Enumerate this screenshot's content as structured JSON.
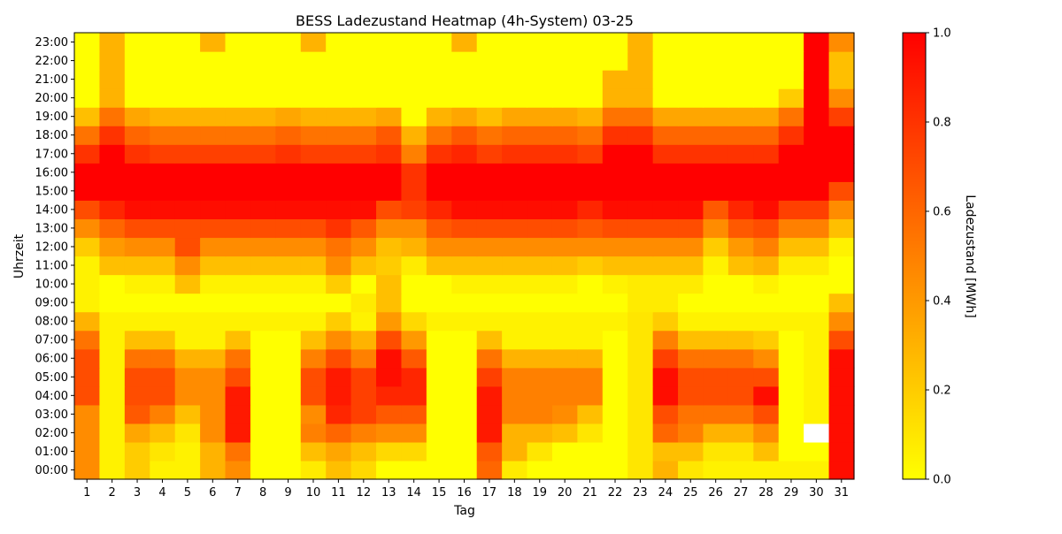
{
  "chart_data": {
    "type": "heatmap",
    "title": "BESS Ladezustand Heatmap (4h-System) 03-25",
    "xlabel": "Tag",
    "ylabel": "Uhrzeit",
    "colorbar": {
      "label": "Ladezustand [MWh]",
      "range": [
        0.0,
        1.0
      ],
      "ticks": [
        "0.0",
        "0.2",
        "0.4",
        "0.6",
        "0.8",
        "1.0"
      ],
      "colormap": "autumn_r",
      "low_color": "#ffff00",
      "high_color": "#ff0000"
    },
    "x": [
      "1",
      "2",
      "3",
      "4",
      "5",
      "6",
      "7",
      "8",
      "9",
      "10",
      "11",
      "12",
      "13",
      "14",
      "15",
      "16",
      "17",
      "18",
      "19",
      "20",
      "21",
      "22",
      "23",
      "24",
      "25",
      "26",
      "27",
      "28",
      "29",
      "30",
      "31"
    ],
    "y": [
      "00:00",
      "01:00",
      "02:00",
      "03:00",
      "04:00",
      "05:00",
      "06:00",
      "07:00",
      "08:00",
      "09:00",
      "10:00",
      "11:00",
      "12:00",
      "13:00",
      "14:00",
      "15:00",
      "16:00",
      "17:00",
      "18:00",
      "19:00",
      "20:00",
      "21:00",
      "22:00",
      "23:00"
    ],
    "values": [
      [
        0.45,
        0.05,
        0.2,
        0.05,
        0.05,
        0.3,
        0.45,
        0.0,
        0.0,
        0.08,
        0.25,
        0.15,
        0.0,
        0.0,
        0.0,
        0.0,
        0.6,
        0.08,
        0.0,
        0.0,
        0.0,
        0.0,
        0.1,
        0.3,
        0.1,
        0.05,
        0.05,
        0.05,
        0.05,
        0.05,
        0.95
      ],
      [
        0.45,
        0.05,
        0.2,
        0.1,
        0.05,
        0.3,
        0.55,
        0.0,
        0.0,
        0.25,
        0.35,
        0.25,
        0.15,
        0.15,
        0.0,
        0.0,
        0.65,
        0.3,
        0.1,
        0.0,
        0.0,
        0.0,
        0.1,
        0.25,
        0.25,
        0.1,
        0.1,
        0.25,
        0.0,
        0.0,
        0.95
      ],
      [
        0.45,
        0.05,
        0.35,
        0.25,
        0.1,
        0.45,
        0.9,
        0.0,
        0.0,
        0.5,
        0.6,
        0.5,
        0.45,
        0.45,
        0.0,
        0.0,
        0.9,
        0.3,
        0.3,
        0.25,
        0.1,
        0.0,
        0.1,
        0.6,
        0.5,
        0.3,
        0.3,
        0.45,
        0.0,
        null,
        0.95
      ],
      [
        0.45,
        0.05,
        0.65,
        0.5,
        0.25,
        0.45,
        0.9,
        0.0,
        0.0,
        0.45,
        0.85,
        0.75,
        0.65,
        0.65,
        0.0,
        0.0,
        0.9,
        0.5,
        0.5,
        0.45,
        0.25,
        0.0,
        0.1,
        0.7,
        0.55,
        0.55,
        0.55,
        0.7,
        0.0,
        0.05,
        0.95
      ],
      [
        0.7,
        0.05,
        0.7,
        0.7,
        0.45,
        0.45,
        0.9,
        0.0,
        0.0,
        0.7,
        0.9,
        0.75,
        0.85,
        0.85,
        0.0,
        0.0,
        0.9,
        0.5,
        0.5,
        0.5,
        0.5,
        0.0,
        0.1,
        0.95,
        0.7,
        0.7,
        0.7,
        0.95,
        0.0,
        0.05,
        0.95
      ],
      [
        0.7,
        0.05,
        0.7,
        0.7,
        0.45,
        0.45,
        0.7,
        0.0,
        0.0,
        0.7,
        0.9,
        0.75,
        0.95,
        0.85,
        0.0,
        0.0,
        0.75,
        0.5,
        0.5,
        0.5,
        0.5,
        0.0,
        0.1,
        0.95,
        0.7,
        0.7,
        0.7,
        0.7,
        0.0,
        0.05,
        0.95
      ],
      [
        0.7,
        0.05,
        0.55,
        0.55,
        0.3,
        0.3,
        0.55,
        0.0,
        0.0,
        0.5,
        0.7,
        0.5,
        0.95,
        0.65,
        0.0,
        0.0,
        0.55,
        0.3,
        0.3,
        0.3,
        0.3,
        0.0,
        0.1,
        0.75,
        0.55,
        0.55,
        0.55,
        0.45,
        0.0,
        0.05,
        0.95
      ],
      [
        0.55,
        0.05,
        0.25,
        0.25,
        0.05,
        0.05,
        0.25,
        0.0,
        0.0,
        0.25,
        0.45,
        0.3,
        0.7,
        0.4,
        0.0,
        0.0,
        0.25,
        0.05,
        0.05,
        0.05,
        0.05,
        0.0,
        0.1,
        0.5,
        0.25,
        0.25,
        0.25,
        0.2,
        0.0,
        0.05,
        0.7
      ],
      [
        0.3,
        0.05,
        0.05,
        0.05,
        0.05,
        0.05,
        0.05,
        0.05,
        0.05,
        0.05,
        0.2,
        0.05,
        0.4,
        0.15,
        0.05,
        0.05,
        0.05,
        0.05,
        0.05,
        0.05,
        0.05,
        0.05,
        0.1,
        0.2,
        0.05,
        0.05,
        0.05,
        0.05,
        0.05,
        0.05,
        0.45
      ],
      [
        0.05,
        0.0,
        0.0,
        0.0,
        0.0,
        0.0,
        0.0,
        0.0,
        0.0,
        0.0,
        0.0,
        0.08,
        0.25,
        0.0,
        0.0,
        0.0,
        0.0,
        0.0,
        0.0,
        0.0,
        0.0,
        0.0,
        0.08,
        0.08,
        0.0,
        0.0,
        0.0,
        0.0,
        0.0,
        0.0,
        0.25
      ],
      [
        0.05,
        0.0,
        0.05,
        0.05,
        0.25,
        0.05,
        0.05,
        0.05,
        0.05,
        0.05,
        0.2,
        0.0,
        0.25,
        0.0,
        0.0,
        0.05,
        0.05,
        0.05,
        0.05,
        0.05,
        0.0,
        0.05,
        0.08,
        0.08,
        0.08,
        0.0,
        0.0,
        0.05,
        0.0,
        0.0,
        0.0
      ],
      [
        0.05,
        0.25,
        0.25,
        0.25,
        0.45,
        0.25,
        0.25,
        0.25,
        0.25,
        0.25,
        0.45,
        0.25,
        0.2,
        0.08,
        0.25,
        0.25,
        0.25,
        0.25,
        0.25,
        0.25,
        0.2,
        0.25,
        0.25,
        0.25,
        0.25,
        0.05,
        0.25,
        0.3,
        0.08,
        0.08,
        0.0
      ],
      [
        0.2,
        0.4,
        0.45,
        0.45,
        0.7,
        0.45,
        0.45,
        0.45,
        0.45,
        0.45,
        0.55,
        0.45,
        0.25,
        0.3,
        0.45,
        0.45,
        0.45,
        0.45,
        0.45,
        0.45,
        0.45,
        0.45,
        0.45,
        0.45,
        0.45,
        0.2,
        0.4,
        0.5,
        0.25,
        0.25,
        0.05
      ],
      [
        0.45,
        0.6,
        0.7,
        0.7,
        0.7,
        0.7,
        0.7,
        0.7,
        0.7,
        0.7,
        0.8,
        0.65,
        0.45,
        0.45,
        0.65,
        0.7,
        0.7,
        0.7,
        0.7,
        0.7,
        0.65,
        0.7,
        0.7,
        0.7,
        0.7,
        0.45,
        0.65,
        0.7,
        0.5,
        0.5,
        0.25
      ],
      [
        0.7,
        0.85,
        0.95,
        0.95,
        0.95,
        0.95,
        0.95,
        0.95,
        0.95,
        0.95,
        0.95,
        0.95,
        0.7,
        0.75,
        0.85,
        0.95,
        0.95,
        0.95,
        0.95,
        0.95,
        0.85,
        0.95,
        0.95,
        0.95,
        0.95,
        0.65,
        0.85,
        0.95,
        0.75,
        0.75,
        0.45
      ],
      [
        1.0,
        1.0,
        1.0,
        1.0,
        1.0,
        1.0,
        1.0,
        1.0,
        1.0,
        1.0,
        1.0,
        1.0,
        1.0,
        0.8,
        1.0,
        1.0,
        1.0,
        1.0,
        1.0,
        1.0,
        1.0,
        1.0,
        1.0,
        1.0,
        1.0,
        1.0,
        1.0,
        1.0,
        1.0,
        1.0,
        0.7
      ],
      [
        1.0,
        1.0,
        1.0,
        1.0,
        1.0,
        1.0,
        1.0,
        1.0,
        1.0,
        1.0,
        1.0,
        1.0,
        1.0,
        0.8,
        1.0,
        1.0,
        1.0,
        1.0,
        1.0,
        1.0,
        1.0,
        1.0,
        1.0,
        1.0,
        1.0,
        1.0,
        1.0,
        1.0,
        1.0,
        1.0,
        1.0
      ],
      [
        0.8,
        1.0,
        0.8,
        0.75,
        0.75,
        0.75,
        0.75,
        0.75,
        0.8,
        0.75,
        0.75,
        0.75,
        0.8,
        0.5,
        0.8,
        0.85,
        0.75,
        0.8,
        0.8,
        0.8,
        0.75,
        1.0,
        1.0,
        0.8,
        0.8,
        0.8,
        0.8,
        0.8,
        1.0,
        1.0,
        1.0
      ],
      [
        0.55,
        0.8,
        0.6,
        0.55,
        0.55,
        0.55,
        0.55,
        0.55,
        0.6,
        0.55,
        0.55,
        0.55,
        0.65,
        0.3,
        0.55,
        0.65,
        0.55,
        0.6,
        0.6,
        0.6,
        0.55,
        0.8,
        0.8,
        0.6,
        0.6,
        0.6,
        0.6,
        0.6,
        0.8,
        1.0,
        1.0
      ],
      [
        0.25,
        0.55,
        0.35,
        0.3,
        0.3,
        0.3,
        0.3,
        0.3,
        0.35,
        0.3,
        0.3,
        0.3,
        0.35,
        0.0,
        0.3,
        0.35,
        0.25,
        0.35,
        0.35,
        0.35,
        0.3,
        0.55,
        0.55,
        0.35,
        0.35,
        0.35,
        0.35,
        0.35,
        0.55,
        1.0,
        0.75
      ],
      [
        0.0,
        0.3,
        0.0,
        0.0,
        0.0,
        0.0,
        0.0,
        0.0,
        0.0,
        0.0,
        0.0,
        0.0,
        0.0,
        0.0,
        0.0,
        0.0,
        0.0,
        0.0,
        0.0,
        0.0,
        0.0,
        0.3,
        0.3,
        0.0,
        0.0,
        0.0,
        0.0,
        0.0,
        0.2,
        1.0,
        0.45
      ],
      [
        0.0,
        0.3,
        0.0,
        0.0,
        0.0,
        0.0,
        0.0,
        0.0,
        0.0,
        0.0,
        0.0,
        0.0,
        0.0,
        0.0,
        0.0,
        0.0,
        0.0,
        0.0,
        0.0,
        0.0,
        0.0,
        0.3,
        0.3,
        0.0,
        0.0,
        0.0,
        0.0,
        0.0,
        0.0,
        1.0,
        0.25
      ],
      [
        0.0,
        0.3,
        0.0,
        0.0,
        0.0,
        0.0,
        0.0,
        0.0,
        0.0,
        0.0,
        0.0,
        0.0,
        0.0,
        0.0,
        0.0,
        0.0,
        0.0,
        0.0,
        0.0,
        0.0,
        0.0,
        0.0,
        0.3,
        0.0,
        0.0,
        0.0,
        0.0,
        0.0,
        0.0,
        1.0,
        0.25
      ],
      [
        0.0,
        0.3,
        0.0,
        0.0,
        0.0,
        0.3,
        0.0,
        0.0,
        0.0,
        0.3,
        0.0,
        0.0,
        0.0,
        0.0,
        0.0,
        0.3,
        0.0,
        0.0,
        0.0,
        0.0,
        0.0,
        0.0,
        0.3,
        0.0,
        0.0,
        0.0,
        0.0,
        0.0,
        0.0,
        1.0,
        0.45
      ]
    ]
  }
}
